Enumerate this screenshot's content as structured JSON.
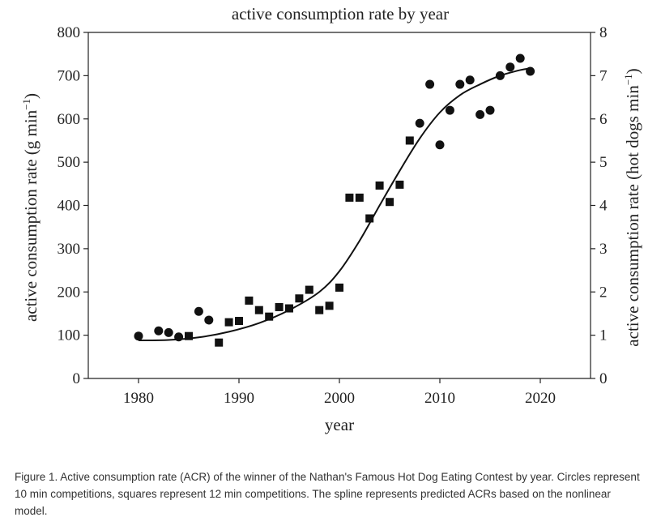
{
  "chart_data": {
    "type": "scatter",
    "title": "active consumption rate by year",
    "xlabel": "year",
    "ylabel_left": "active consumption rate (g min",
    "ylabel_left_sup": "−1",
    "ylabel_left_close": ")",
    "ylabel_right": "active consumption rate (hot dogs min",
    "ylabel_right_sup": "−1",
    "ylabel_right_close": ")",
    "xlim": [
      1975,
      2025
    ],
    "ylim": [
      0,
      800
    ],
    "ylim_right": [
      0,
      8
    ],
    "x_ticks": [
      1980,
      1990,
      2000,
      2010,
      2020
    ],
    "y_ticks": [
      0,
      100,
      200,
      300,
      400,
      500,
      600,
      700,
      800
    ],
    "y_ticks_right": [
      0,
      1,
      2,
      3,
      4,
      5,
      6,
      7,
      8
    ],
    "grid": false,
    "series": [
      {
        "marker": "circle",
        "points": [
          [
            1980,
            98
          ],
          [
            1982,
            110
          ],
          [
            1983,
            106
          ],
          [
            1984,
            96
          ],
          [
            1986,
            155
          ],
          [
            1987,
            135
          ],
          [
            2008,
            590
          ],
          [
            2009,
            680
          ],
          [
            2010,
            540
          ],
          [
            2011,
            620
          ],
          [
            2012,
            680
          ],
          [
            2013,
            690
          ],
          [
            2014,
            610
          ],
          [
            2015,
            620
          ],
          [
            2016,
            700
          ],
          [
            2017,
            720
          ],
          [
            2018,
            740
          ],
          [
            2019,
            710
          ]
        ]
      },
      {
        "marker": "square",
        "points": [
          [
            1985,
            98
          ],
          [
            1988,
            83
          ],
          [
            1989,
            130
          ],
          [
            1990,
            133
          ],
          [
            1991,
            180
          ],
          [
            1992,
            158
          ],
          [
            1993,
            143
          ],
          [
            1994,
            165
          ],
          [
            1995,
            162
          ],
          [
            1996,
            185
          ],
          [
            1997,
            205
          ],
          [
            1998,
            158
          ],
          [
            1999,
            168
          ],
          [
            2000,
            210
          ],
          [
            2001,
            418
          ],
          [
            2002,
            418
          ],
          [
            2003,
            370
          ],
          [
            2004,
            446
          ],
          [
            2005,
            408
          ],
          [
            2006,
            448
          ],
          [
            2007,
            550
          ]
        ]
      }
    ],
    "spline": {
      "type": "line",
      "points": [
        [
          1980,
          88
        ],
        [
          1983,
          89
        ],
        [
          1986,
          95
        ],
        [
          1989,
          108
        ],
        [
          1992,
          128
        ],
        [
          1995,
          158
        ],
        [
          1998,
          200
        ],
        [
          2000,
          248
        ],
        [
          2002,
          318
        ],
        [
          2004,
          400
        ],
        [
          2006,
          480
        ],
        [
          2008,
          555
        ],
        [
          2010,
          615
        ],
        [
          2012,
          655
        ],
        [
          2014,
          680
        ],
        [
          2016,
          700
        ],
        [
          2018,
          713
        ],
        [
          2019,
          717
        ]
      ]
    }
  },
  "caption": "Figure 1. Active consumption rate (ACR) of the winner of the Nathan's Famous Hot Dog Eating Contest by year. Circles represent 10 min competitions, squares represent 12 min competitions. The spline represents predicted ACRs based on the nonlinear model."
}
